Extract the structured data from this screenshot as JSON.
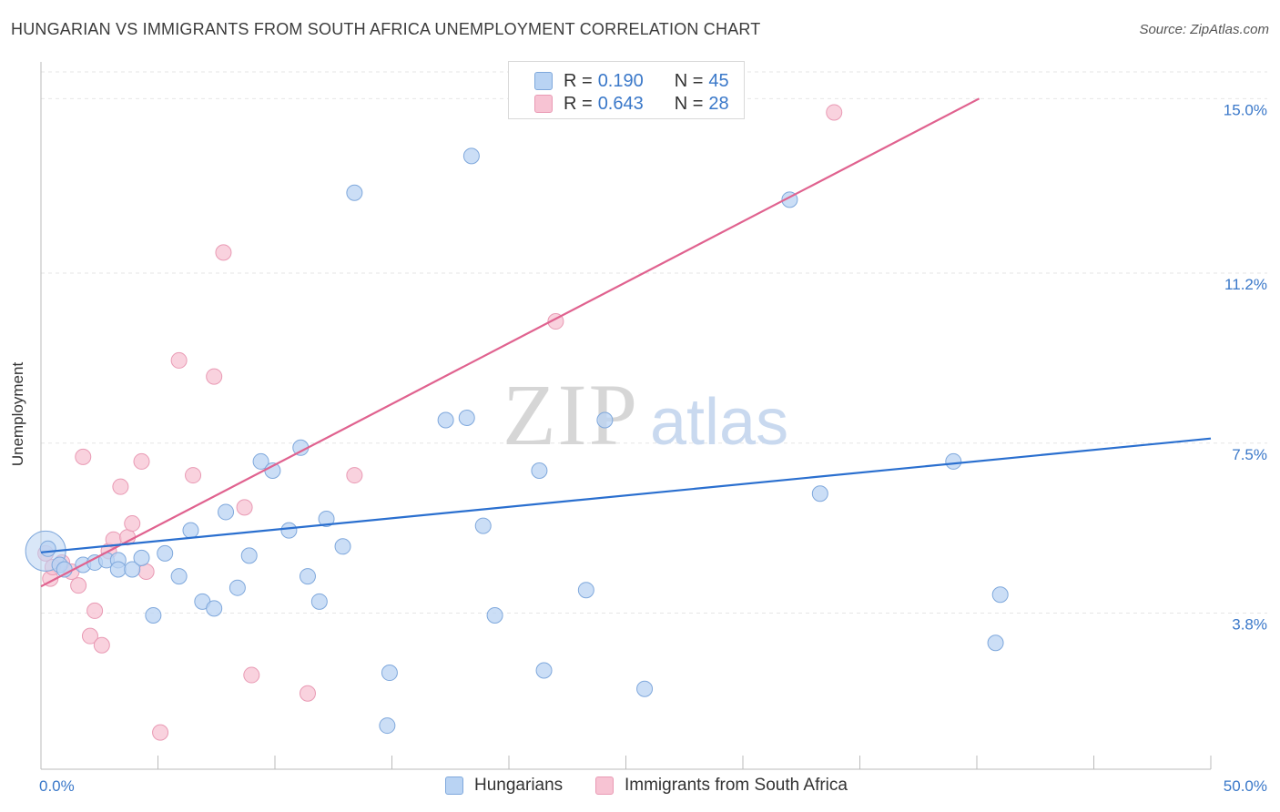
{
  "header": {
    "title": "HUNGARIAN VS IMMIGRANTS FROM SOUTH AFRICA UNEMPLOYMENT CORRELATION CHART",
    "source": "Source: ZipAtlas.com"
  },
  "watermark": {
    "part1": "ZIP",
    "part2": "atlas"
  },
  "legend_top": {
    "rows": [
      {
        "r_label": "R =",
        "r_value": "0.190",
        "n_label": "N =",
        "n_value": "45"
      },
      {
        "r_label": "R =",
        "r_value": "0.643",
        "n_label": "N =",
        "n_value": "28"
      }
    ]
  },
  "bottom_legend": {
    "series1": "Hungarians",
    "series2": "Immigrants from South Africa"
  },
  "colors": {
    "blue_fill": "#b9d3f3",
    "blue_stroke": "#7fa8dc",
    "blue_line": "#2a6fcf",
    "pink_fill": "#f7c3d3",
    "pink_stroke": "#e99ab4",
    "pink_line": "#e0628f",
    "axis_label": "#3a78c9",
    "grid": "#e6e6e6"
  },
  "chart_data": {
    "type": "scatter",
    "title": "HUNGARIAN VS IMMIGRANTS FROM SOUTH AFRICA UNEMPLOYMENT CORRELATION CHART",
    "xlabel": "",
    "ylabel": "Unemployment",
    "x_tick_labels": [
      "0.0%",
      "50.0%"
    ],
    "y_tick_labels": [
      "3.8%",
      "7.5%",
      "11.2%",
      "15.0%"
    ],
    "y_ticks": [
      3.8,
      7.5,
      11.2,
      15.0
    ],
    "xlim": [
      0,
      50
    ],
    "ylim": [
      0.4,
      15.7
    ],
    "grid": true,
    "legend_placement": "top-center",
    "series": [
      {
        "name": "Hungarians",
        "r": 0.19,
        "n": 45,
        "trend": {
          "x": [
            0,
            50
          ],
          "y": [
            5.12,
            7.6
          ]
        },
        "points": [
          {
            "x": 0.3,
            "y": 5.2
          },
          {
            "x": 0.8,
            "y": 4.85
          },
          {
            "x": 1.0,
            "y": 4.75
          },
          {
            "x": 1.8,
            "y": 4.85
          },
          {
            "x": 2.3,
            "y": 4.9
          },
          {
            "x": 2.8,
            "y": 4.95
          },
          {
            "x": 3.3,
            "y": 4.95
          },
          {
            "x": 3.3,
            "y": 4.75
          },
          {
            "x": 3.9,
            "y": 4.75
          },
          {
            "x": 4.3,
            "y": 5.0
          },
          {
            "x": 4.8,
            "y": 3.75
          },
          {
            "x": 5.3,
            "y": 5.1
          },
          {
            "x": 5.9,
            "y": 4.6
          },
          {
            "x": 6.4,
            "y": 5.6
          },
          {
            "x": 6.9,
            "y": 4.05
          },
          {
            "x": 7.4,
            "y": 3.9
          },
          {
            "x": 7.9,
            "y": 6.0
          },
          {
            "x": 8.4,
            "y": 4.35
          },
          {
            "x": 8.9,
            "y": 5.05
          },
          {
            "x": 9.4,
            "y": 7.1
          },
          {
            "x": 9.9,
            "y": 6.9
          },
          {
            "x": 10.6,
            "y": 5.6
          },
          {
            "x": 11.1,
            "y": 7.4
          },
          {
            "x": 11.4,
            "y": 4.6
          },
          {
            "x": 11.9,
            "y": 4.05
          },
          {
            "x": 12.2,
            "y": 5.85
          },
          {
            "x": 12.9,
            "y": 5.25
          },
          {
            "x": 13.4,
            "y": 12.95
          },
          {
            "x": 14.9,
            "y": 2.5
          },
          {
            "x": 14.8,
            "y": 1.35
          },
          {
            "x": 17.3,
            "y": 8.0
          },
          {
            "x": 18.2,
            "y": 8.05
          },
          {
            "x": 18.4,
            "y": 13.75
          },
          {
            "x": 18.9,
            "y": 5.7
          },
          {
            "x": 19.4,
            "y": 3.75
          },
          {
            "x": 21.3,
            "y": 6.9
          },
          {
            "x": 21.5,
            "y": 2.55
          },
          {
            "x": 23.3,
            "y": 4.3
          },
          {
            "x": 24.1,
            "y": 8.0
          },
          {
            "x": 25.8,
            "y": 2.15
          },
          {
            "x": 32.0,
            "y": 12.8
          },
          {
            "x": 33.3,
            "y": 6.4
          },
          {
            "x": 39.0,
            "y": 7.1
          },
          {
            "x": 40.8,
            "y": 3.15
          },
          {
            "x": 41.0,
            "y": 4.2
          }
        ]
      },
      {
        "name": "Immigrants from South Africa",
        "r": 0.643,
        "n": 28,
        "trend": {
          "x": [
            0,
            40.1
          ],
          "y": [
            4.38,
            15.0
          ]
        },
        "points": [
          {
            "x": 0.2,
            "y": 5.1
          },
          {
            "x": 0.4,
            "y": 4.55
          },
          {
            "x": 0.9,
            "y": 4.9
          },
          {
            "x": 1.3,
            "y": 4.7
          },
          {
            "x": 1.6,
            "y": 4.4
          },
          {
            "x": 1.8,
            "y": 7.2
          },
          {
            "x": 2.1,
            "y": 3.3
          },
          {
            "x": 2.3,
            "y": 3.85
          },
          {
            "x": 2.6,
            "y": 3.1
          },
          {
            "x": 2.9,
            "y": 5.15
          },
          {
            "x": 3.1,
            "y": 5.4
          },
          {
            "x": 3.4,
            "y": 6.55
          },
          {
            "x": 3.7,
            "y": 5.45
          },
          {
            "x": 3.9,
            "y": 5.75
          },
          {
            "x": 4.3,
            "y": 7.1
          },
          {
            "x": 4.5,
            "y": 4.7
          },
          {
            "x": 5.1,
            "y": 1.2
          },
          {
            "x": 5.9,
            "y": 9.3
          },
          {
            "x": 6.5,
            "y": 6.8
          },
          {
            "x": 7.4,
            "y": 8.95
          },
          {
            "x": 7.8,
            "y": 11.65
          },
          {
            "x": 8.7,
            "y": 6.1
          },
          {
            "x": 9.0,
            "y": 2.45
          },
          {
            "x": 11.4,
            "y": 2.05
          },
          {
            "x": 13.4,
            "y": 6.8
          },
          {
            "x": 22.0,
            "y": 10.15
          },
          {
            "x": 33.9,
            "y": 14.7
          },
          {
            "x": 0.5,
            "y": 4.8
          }
        ]
      }
    ]
  }
}
